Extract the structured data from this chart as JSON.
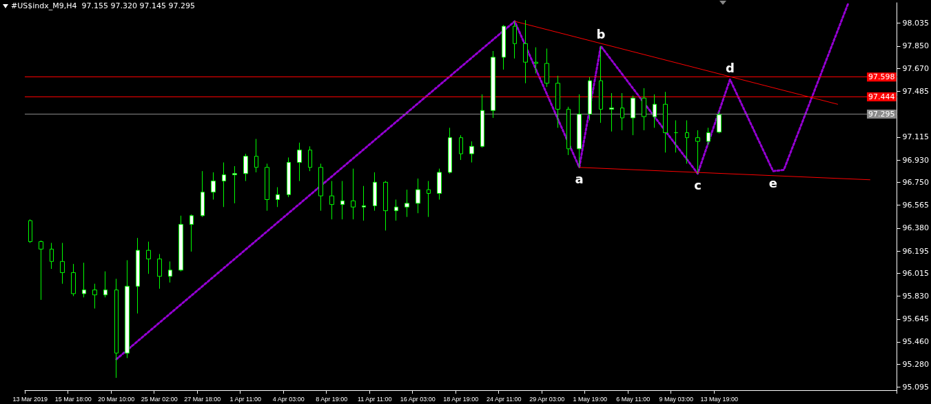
{
  "chart_data": {
    "type": "candlestick",
    "title": "#US$indx_M9,H4  97.155 97.320 97.145 97.295",
    "categories": [
      "13 Mar 2019",
      null,
      null,
      null,
      "15 Mar 18:00",
      null,
      null,
      null,
      "20 Mar 10:00",
      null,
      null,
      null,
      "25 Mar 02:00",
      null,
      null,
      null,
      "27 Mar 18:00",
      null,
      null,
      null,
      "1 Apr 11:00",
      null,
      null,
      null,
      "4 Apr 03:00",
      null,
      null,
      null,
      "8 Apr 19:00",
      null,
      null,
      null,
      "11 Apr 11:00",
      null,
      null,
      null,
      "16 Apr 03:00",
      null,
      null,
      null,
      "18 Apr 19:00",
      null,
      null,
      null,
      "24 Apr 11:00",
      null,
      null,
      null,
      "29 Apr 03:00",
      null,
      null,
      null,
      "1 May 19:00",
      null,
      null,
      null,
      "6 May 11:00",
      null,
      null,
      null,
      "9 May 03:00",
      null,
      null,
      null,
      "13 May 19:00",
      null,
      null,
      null,
      null,
      null,
      null,
      null,
      null,
      null,
      null,
      null,
      null,
      null,
      null,
      null,
      null
    ],
    "ohlc": [
      [
        96.44,
        96.45,
        96.26,
        96.27
      ],
      [
        96.27,
        96.28,
        95.8,
        96.21
      ],
      [
        96.21,
        96.26,
        96.05,
        96.11
      ],
      [
        96.11,
        96.26,
        95.93,
        96.02
      ],
      [
        96.02,
        96.09,
        95.83,
        95.85
      ],
      [
        95.85,
        96.1,
        95.82,
        95.88
      ],
      [
        95.88,
        95.93,
        95.73,
        95.84
      ],
      [
        95.84,
        96.03,
        95.82,
        95.88
      ],
      [
        95.88,
        95.97,
        95.17,
        95.37
      ],
      [
        95.37,
        96.12,
        95.33,
        95.91
      ],
      [
        95.91,
        96.3,
        95.69,
        96.2
      ],
      [
        96.2,
        96.27,
        96.01,
        96.13
      ],
      [
        96.13,
        96.17,
        95.89,
        95.99
      ],
      [
        95.99,
        96.11,
        95.94,
        96.04
      ],
      [
        96.04,
        96.48,
        96.03,
        96.41
      ],
      [
        96.41,
        96.49,
        96.19,
        96.48
      ],
      [
        96.48,
        96.84,
        96.47,
        96.67
      ],
      [
        96.67,
        96.83,
        96.61,
        96.76
      ],
      [
        96.76,
        96.91,
        96.55,
        96.81
      ],
      [
        96.81,
        96.88,
        96.58,
        96.82
      ],
      [
        96.82,
        96.98,
        96.76,
        96.96
      ],
      [
        96.96,
        97.1,
        96.83,
        96.87
      ],
      [
        96.87,
        96.9,
        96.52,
        96.61
      ],
      [
        96.61,
        96.71,
        96.55,
        96.65
      ],
      [
        96.65,
        96.95,
        96.63,
        96.91
      ],
      [
        96.91,
        97.07,
        96.76,
        97.01
      ],
      [
        97.01,
        97.04,
        96.84,
        96.87
      ],
      [
        96.87,
        96.9,
        96.52,
        96.64
      ],
      [
        96.64,
        96.76,
        96.45,
        96.57
      ],
      [
        96.57,
        96.76,
        96.45,
        96.6
      ],
      [
        96.6,
        96.86,
        96.45,
        96.55
      ],
      [
        96.55,
        96.72,
        96.44,
        96.56
      ],
      [
        96.56,
        96.83,
        96.52,
        96.75
      ],
      [
        96.75,
        96.76,
        96.36,
        96.52
      ],
      [
        96.52,
        96.61,
        96.44,
        96.55
      ],
      [
        96.55,
        96.69,
        96.47,
        96.58
      ],
      [
        96.58,
        96.78,
        96.5,
        96.69
      ],
      [
        96.69,
        96.76,
        96.47,
        96.66
      ],
      [
        96.66,
        96.86,
        96.61,
        96.83
      ],
      [
        96.83,
        97.19,
        96.82,
        97.11
      ],
      [
        97.11,
        97.13,
        96.93,
        96.98
      ],
      [
        96.98,
        97.08,
        96.91,
        97.04
      ],
      [
        97.04,
        97.46,
        97.03,
        97.33
      ],
      [
        97.33,
        97.81,
        97.27,
        97.76
      ],
      [
        97.76,
        98.02,
        97.66,
        98.01
      ],
      [
        98.01,
        98.05,
        97.75,
        97.87
      ],
      [
        97.87,
        98.06,
        97.55,
        97.72
      ],
      [
        97.72,
        97.84,
        97.63,
        97.71
      ],
      [
        97.71,
        97.83,
        97.52,
        97.55
      ],
      [
        97.55,
        97.61,
        97.19,
        97.34
      ],
      [
        97.34,
        97.36,
        96.97,
        97.02
      ],
      [
        97.02,
        97.46,
        96.87,
        97.3
      ],
      [
        97.3,
        97.6,
        97.25,
        97.57
      ],
      [
        97.57,
        97.85,
        97.23,
        97.34
      ],
      [
        97.34,
        97.47,
        97.16,
        97.35
      ],
      [
        97.35,
        97.47,
        97.17,
        97.27
      ],
      [
        97.27,
        97.45,
        97.13,
        97.43
      ],
      [
        97.43,
        97.51,
        97.17,
        97.28
      ],
      [
        97.28,
        97.46,
        97.19,
        97.38
      ],
      [
        97.38,
        97.48,
        96.99,
        97.15
      ],
      [
        97.15,
        97.25,
        96.99,
        97.15
      ],
      [
        97.15,
        97.25,
        96.9,
        97.11
      ],
      [
        97.11,
        97.17,
        96.82,
        97.08
      ],
      [
        97.08,
        97.19,
        97.05,
        97.15
      ],
      [
        97.155,
        97.32,
        97.145,
        97.295
      ],
      null,
      null,
      null,
      null,
      null,
      null,
      null,
      null,
      null,
      null,
      null,
      null,
      null,
      null,
      null,
      null
    ],
    "series": [
      {
        "type": "line",
        "color": "#9400d3",
        "line_style": "dotted",
        "values": [
          null,
          null,
          null,
          null,
          null,
          null,
          null,
          null,
          95.32,
          null,
          null,
          null,
          null,
          null,
          null,
          null,
          null,
          null,
          null,
          null,
          null,
          null,
          null,
          null,
          null,
          null,
          null,
          null,
          null,
          null,
          null,
          null,
          null,
          null,
          null,
          null,
          null,
          null,
          null,
          null,
          null,
          null,
          null,
          null,
          null,
          98.05,
          null,
          null,
          null,
          null,
          null,
          96.87,
          null,
          97.85,
          null,
          null,
          null,
          null,
          null,
          null,
          null,
          null,
          96.82,
          null,
          null,
          97.58,
          null,
          null,
          null,
          96.84,
          96.85,
          null,
          null,
          null,
          null,
          null,
          98.2,
          null,
          null,
          null,
          null
        ],
        "value_labels": [
          null,
          null,
          null,
          null,
          null,
          null,
          null,
          null,
          null,
          null,
          null,
          null,
          null,
          null,
          null,
          null,
          null,
          null,
          null,
          null,
          null,
          null,
          null,
          null,
          null,
          null,
          null,
          null,
          null,
          null,
          null,
          null,
          null,
          null,
          null,
          null,
          null,
          null,
          null,
          null,
          null,
          null,
          null,
          null,
          null,
          null,
          null,
          null,
          null,
          null,
          null,
          "a",
          null,
          "b",
          null,
          null,
          null,
          null,
          null,
          null,
          null,
          null,
          "c",
          null,
          null,
          "d",
          null,
          null,
          null,
          "e",
          null,
          null,
          null,
          null,
          null,
          null,
          null,
          null,
          null,
          null,
          null
        ]
      },
      {
        "type": "line",
        "color": "#ff0000",
        "line_style": "solid",
        "values": [
          null,
          null,
          null,
          null,
          null,
          null,
          null,
          null,
          null,
          null,
          null,
          null,
          null,
          null,
          null,
          null,
          null,
          null,
          null,
          null,
          null,
          null,
          null,
          null,
          null,
          null,
          null,
          null,
          null,
          null,
          null,
          null,
          null,
          null,
          null,
          null,
          null,
          null,
          null,
          null,
          null,
          null,
          null,
          null,
          null,
          98.05,
          null,
          null,
          null,
          null,
          null,
          null,
          null,
          null,
          null,
          null,
          null,
          null,
          null,
          null,
          null,
          null,
          null,
          null,
          null,
          null,
          null,
          null,
          null,
          null,
          null,
          null,
          null,
          null,
          null,
          97.38,
          null,
          null,
          null,
          null,
          null
        ]
      },
      {
        "type": "line",
        "color": "#ff0000",
        "line_style": "solid",
        "values": [
          null,
          null,
          null,
          null,
          null,
          null,
          null,
          null,
          null,
          null,
          null,
          null,
          null,
          null,
          null,
          null,
          null,
          null,
          null,
          null,
          null,
          null,
          null,
          null,
          null,
          null,
          null,
          null,
          null,
          null,
          null,
          null,
          null,
          null,
          null,
          null,
          null,
          null,
          null,
          null,
          null,
          null,
          null,
          null,
          null,
          null,
          null,
          null,
          null,
          null,
          null,
          96.87,
          null,
          null,
          null,
          null,
          null,
          null,
          null,
          null,
          null,
          null,
          null,
          null,
          null,
          null,
          null,
          null,
          null,
          null,
          null,
          null,
          null,
          null,
          null,
          null,
          null,
          null,
          96.77,
          null,
          null
        ]
      }
    ],
    "ref_lines": [
      {
        "axis": "y",
        "value": 97.598,
        "label": "97.598",
        "color": "#ff0000"
      },
      {
        "axis": "y",
        "value": 97.444,
        "label": "97.444",
        "color": "#ff0000"
      },
      {
        "axis": "y",
        "value": 97.295,
        "label": "97.295",
        "color": "#8a8a8a"
      }
    ],
    "ylim": [
      95.07,
      98.2
    ],
    "yticks": [
      {
        "value": 95.095,
        "label": "95.095"
      },
      {
        "value": 95.28,
        "label": "95.280"
      },
      {
        "value": 95.46,
        "label": "95.460"
      },
      {
        "value": 95.645,
        "label": "95.645"
      },
      {
        "value": 95.83,
        "label": "95.830"
      },
      {
        "value": 96.015,
        "label": "96.015"
      },
      {
        "value": 96.195,
        "label": "96.195"
      },
      {
        "value": 96.38,
        "label": "96.380"
      },
      {
        "value": 96.565,
        "label": "96.565"
      },
      {
        "value": 96.75,
        "label": "96.750"
      },
      {
        "value": 96.93,
        "label": "96.930"
      },
      {
        "value": 97.115,
        "label": "97.115"
      },
      {
        "value": 97.485,
        "label": "97.485"
      },
      {
        "value": 97.67,
        "label": "97.670"
      },
      {
        "value": 97.85,
        "label": "97.850"
      },
      {
        "value": 98.035,
        "label": "98.035"
      }
    ],
    "grid": false,
    "marker": "none"
  }
}
